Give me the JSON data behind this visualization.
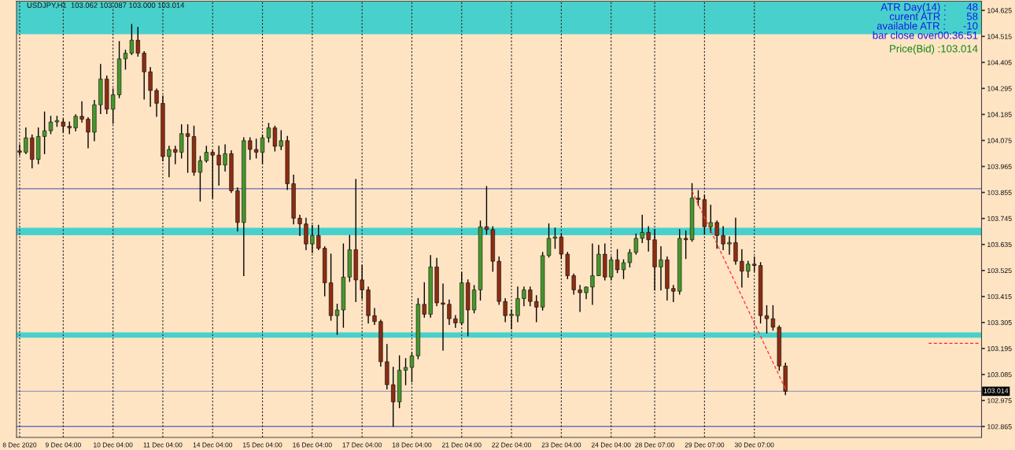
{
  "chart_data": {
    "type": "candlestick",
    "title": "USDJPY,H1  103.062 103.087 103.000 103.014",
    "annotations": [
      "ATR Day(14) :       48",
      "curent ATR :       58",
      "available ATR :      -10",
      "bar close over00:36:51",
      "Price(Bid) :103.014"
    ],
    "categories": [
      "8 Dec 2020",
      null,
      null,
      null,
      null,
      null,
      null,
      "9 Dec 04:00",
      null,
      null,
      null,
      null,
      null,
      null,
      null,
      "10 Dec 04:00",
      null,
      null,
      null,
      null,
      null,
      null,
      null,
      "11 Dec 04:00",
      null,
      null,
      null,
      null,
      null,
      null,
      null,
      "14 Dec 04:00",
      null,
      null,
      null,
      null,
      null,
      null,
      null,
      "15 Dec 04:00",
      null,
      null,
      null,
      null,
      null,
      null,
      null,
      "16 Dec 04:00",
      null,
      null,
      null,
      null,
      null,
      null,
      null,
      "17 Dec 04:00",
      null,
      null,
      null,
      null,
      null,
      null,
      null,
      "18 Dec 04:00",
      null,
      null,
      null,
      null,
      null,
      null,
      null,
      "21 Dec 04:00",
      null,
      null,
      null,
      null,
      null,
      null,
      null,
      "22 Dec 04:00",
      null,
      null,
      null,
      null,
      null,
      null,
      null,
      "23 Dec 04:00",
      null,
      null,
      null,
      null,
      null,
      null,
      null,
      "24 Dec 04:00",
      null,
      null,
      null,
      null,
      null,
      null,
      "28 Dec 07:00",
      null,
      null,
      null,
      null,
      null,
      null,
      null,
      "29 Dec 07:00",
      null,
      null,
      null,
      null,
      null,
      null,
      null,
      "30 Dec 07:00",
      null,
      null,
      null,
      null,
      null,
      null,
      null,
      null,
      null,
      null,
      null,
      null,
      null,
      null,
      null,
      null,
      null,
      null,
      null,
      null,
      null,
      null,
      null,
      null,
      null,
      null,
      null,
      null,
      null,
      null,
      null,
      null,
      null,
      null,
      null,
      null
    ],
    "ohlc": [
      [
        104.031,
        104.056,
        104.013,
        104.025
      ],
      [
        104.025,
        104.128,
        104.019,
        104.086
      ],
      [
        104.086,
        104.098,
        103.959,
        103.995
      ],
      [
        103.995,
        104.128,
        103.977,
        104.092
      ],
      [
        104.092,
        104.195,
        104.019,
        104.116
      ],
      [
        104.116,
        104.177,
        104.104,
        104.153
      ],
      [
        104.153,
        104.177,
        104.135,
        104.159
      ],
      [
        104.153,
        104.165,
        104.11,
        104.135
      ],
      [
        104.135,
        104.153,
        104.104,
        104.128
      ],
      [
        104.128,
        104.183,
        104.116,
        104.177
      ],
      [
        104.177,
        104.238,
        104.153,
        104.165
      ],
      [
        104.165,
        104.171,
        104.044,
        104.11
      ],
      [
        104.11,
        104.244,
        104.074,
        104.226
      ],
      [
        104.226,
        104.396,
        104.189,
        104.335
      ],
      [
        104.335,
        104.347,
        104.189,
        104.207
      ],
      [
        104.207,
        104.292,
        104.147,
        104.268
      ],
      [
        104.268,
        104.493,
        104.256,
        104.42
      ],
      [
        104.42,
        104.456,
        104.377,
        104.444
      ],
      [
        104.444,
        104.565,
        104.438,
        104.499
      ],
      [
        104.499,
        104.553,
        104.432,
        104.444
      ],
      [
        104.444,
        104.45,
        104.25,
        104.365
      ],
      [
        104.365,
        104.383,
        104.22,
        104.286
      ],
      [
        104.286,
        104.292,
        104.177,
        104.232
      ],
      [
        104.232,
        104.262,
        103.989,
        104.007
      ],
      [
        104.007,
        104.05,
        103.922,
        104.037
      ],
      [
        104.037,
        104.05,
        103.977,
        104.025
      ],
      [
        104.025,
        104.141,
        104.001,
        104.104
      ],
      [
        104.104,
        104.141,
        103.94,
        104.092
      ],
      [
        104.092,
        104.135,
        103.928,
        103.94
      ],
      [
        103.94,
        104.007,
        103.819,
        103.989
      ],
      [
        103.989,
        104.05,
        103.983,
        104.025
      ],
      [
        104.025,
        104.031,
        103.831,
        104.013
      ],
      [
        104.013,
        104.05,
        103.886,
        103.971
      ],
      [
        103.971,
        104.056,
        103.946,
        104.019
      ],
      [
        104.019,
        104.031,
        103.855,
        103.862
      ],
      [
        103.862,
        103.874,
        103.692,
        103.728
      ],
      [
        103.728,
        104.086,
        103.503,
        104.074
      ],
      [
        104.074,
        104.086,
        103.995,
        104.037
      ],
      [
        104.037,
        104.08,
        104.001,
        104.025
      ],
      [
        104.025,
        104.098,
        103.977,
        104.086
      ],
      [
        104.086,
        104.147,
        104.068,
        104.128
      ],
      [
        104.128,
        104.135,
        104.031,
        104.05
      ],
      [
        104.05,
        104.116,
        104.037,
        104.074
      ],
      [
        104.074,
        104.092,
        103.868,
        103.892
      ],
      [
        103.892,
        103.928,
        103.722,
        103.746
      ],
      [
        103.746,
        103.758,
        103.673,
        103.722
      ],
      [
        103.722,
        103.746,
        103.613,
        103.637
      ],
      [
        103.637,
        103.716,
        103.601,
        103.673
      ],
      [
        103.673,
        103.716,
        103.613,
        103.619
      ],
      [
        103.619,
        103.625,
        103.418,
        103.473
      ],
      [
        103.473,
        103.594,
        103.315,
        103.334
      ],
      [
        103.334,
        103.382,
        103.255,
        103.358
      ],
      [
        103.358,
        103.637,
        103.285,
        103.497
      ],
      [
        103.497,
        103.673,
        103.479,
        103.613
      ],
      [
        103.613,
        103.91,
        103.394,
        103.485
      ],
      [
        103.485,
        103.546,
        103.406,
        103.443
      ],
      [
        103.443,
        103.455,
        103.303,
        103.334
      ],
      [
        103.334,
        103.364,
        103.297,
        103.309
      ],
      [
        103.309,
        103.315,
        103.121,
        103.139
      ],
      [
        103.139,
        103.212,
        103.024,
        103.042
      ],
      [
        103.042,
        103.115,
        102.866,
        102.969
      ],
      [
        102.969,
        103.164,
        102.945,
        103.103
      ],
      [
        103.103,
        103.152,
        103.042,
        103.115
      ],
      [
        103.115,
        103.176,
        103.054,
        103.164
      ],
      [
        103.164,
        103.406,
        103.152,
        103.382
      ],
      [
        103.382,
        103.473,
        103.328,
        103.34
      ],
      [
        103.34,
        103.588,
        103.328,
        103.54
      ],
      [
        103.54,
        103.576,
        103.376,
        103.388
      ],
      [
        103.388,
        103.467,
        103.188,
        103.382
      ],
      [
        103.382,
        103.4,
        103.297,
        103.321
      ],
      [
        103.321,
        103.334,
        103.285,
        103.303
      ],
      [
        103.303,
        103.516,
        103.297,
        103.473
      ],
      [
        103.473,
        103.485,
        103.249,
        103.358
      ],
      [
        103.358,
        103.461,
        103.346,
        103.443
      ],
      [
        103.443,
        103.734,
        103.4,
        103.71
      ],
      [
        103.71,
        103.88,
        103.679,
        103.698
      ],
      [
        103.698,
        103.71,
        103.522,
        103.564
      ],
      [
        103.564,
        103.582,
        103.382,
        103.394
      ],
      [
        103.394,
        103.406,
        103.309,
        103.334
      ],
      [
        103.334,
        103.358,
        103.279,
        103.34
      ],
      [
        103.334,
        103.455,
        103.309,
        103.406
      ],
      [
        103.406,
        103.455,
        103.376,
        103.443
      ],
      [
        103.443,
        103.455,
        103.376,
        103.394
      ],
      [
        103.394,
        103.418,
        103.309,
        103.37
      ],
      [
        103.37,
        103.601,
        103.358,
        103.588
      ],
      [
        103.588,
        103.722,
        103.582,
        103.661
      ],
      [
        103.661,
        103.704,
        103.619,
        103.667
      ],
      [
        103.667,
        103.679,
        103.576,
        103.594
      ],
      [
        103.594,
        103.601,
        103.491,
        103.503
      ],
      [
        103.503,
        103.51,
        103.425,
        103.443
      ],
      [
        103.443,
        103.461,
        103.352,
        103.431
      ],
      [
        103.431,
        103.455,
        103.406,
        103.455
      ],
      [
        103.455,
        103.637,
        103.382,
        103.503
      ],
      [
        103.503,
        103.631,
        103.503,
        103.594
      ],
      [
        103.594,
        103.637,
        103.485,
        103.497
      ],
      [
        103.497,
        103.582,
        103.485,
        103.57
      ],
      [
        103.57,
        103.613,
        103.516,
        103.528
      ],
      [
        103.528,
        103.57,
        103.491,
        103.558
      ],
      [
        103.558,
        103.613,
        103.54,
        103.601
      ],
      [
        103.601,
        103.679,
        103.594,
        103.661
      ],
      [
        103.661,
        103.758,
        103.643,
        103.686
      ],
      [
        103.686,
        103.71,
        103.607,
        103.655
      ],
      [
        103.655,
        103.698,
        103.443,
        103.54
      ],
      [
        103.54,
        103.625,
        103.443,
        103.57
      ],
      [
        103.57,
        103.582,
        103.4,
        103.449
      ],
      [
        103.449,
        103.461,
        103.394,
        103.437
      ],
      [
        103.437,
        103.698,
        103.425,
        103.661
      ],
      [
        103.661,
        103.692,
        103.576,
        103.655
      ],
      [
        103.655,
        103.892,
        103.649,
        103.831
      ],
      [
        103.831,
        103.862,
        103.801,
        103.825
      ],
      [
        103.825,
        103.843,
        103.679,
        103.71
      ],
      [
        103.71,
        103.801,
        103.686,
        103.728
      ],
      [
        103.728,
        103.734,
        103.619,
        103.673
      ],
      [
        103.673,
        103.71,
        103.613,
        103.637
      ],
      [
        103.637,
        103.667,
        103.594,
        103.643
      ],
      [
        103.643,
        103.746,
        103.552,
        103.564
      ],
      [
        103.564,
        103.613,
        103.455,
        103.522
      ],
      [
        103.522,
        103.564,
        103.497,
        103.552
      ],
      [
        103.552,
        103.582,
        103.522,
        103.546
      ],
      [
        103.546,
        103.558,
        103.303,
        103.334
      ],
      [
        103.334,
        103.376,
        103.261,
        103.321
      ],
      [
        103.321,
        103.376,
        103.273,
        103.285
      ],
      [
        103.285,
        103.291,
        103.103,
        103.121
      ],
      [
        103.121,
        103.133,
        103.0,
        103.014
      ],
      null,
      null,
      null,
      null,
      null,
      null,
      null,
      null,
      null,
      null,
      null,
      null,
      null,
      null,
      null,
      null,
      null,
      null,
      null,
      null,
      null,
      null,
      null,
      null,
      null,
      null,
      null,
      null,
      null,
      null,
      null
    ],
    "colors": [
      "#8c2d12",
      "#46962d",
      "#8c2d12",
      "#46962d",
      "#46962d",
      "#46962d",
      "#46962d",
      "#8c2d12",
      "#8c2d12",
      "#46962d",
      "#8c2d12",
      "#8c2d12",
      "#46962d",
      "#46962d",
      "#8c2d12",
      "#46962d",
      "#46962d",
      "#46962d",
      "#46962d",
      "#8c2d12",
      "#8c2d12",
      "#8c2d12",
      "#8c2d12",
      "#8c2d12",
      "#46962d",
      "#8c2d12",
      "#46962d",
      "#8c2d12",
      "#8c2d12",
      "#46962d",
      "#46962d",
      "#8c2d12",
      "#8c2d12",
      "#46962d",
      "#8c2d12",
      "#8c2d12",
      "#46962d",
      "#8c2d12",
      "#8c2d12",
      "#46962d",
      "#46962d",
      "#8c2d12",
      "#46962d",
      "#8c2d12",
      "#8c2d12",
      "#8c2d12",
      "#8c2d12",
      "#46962d",
      "#8c2d12",
      "#8c2d12",
      "#8c2d12",
      "#46962d",
      "#46962d",
      "#46962d",
      "#8c2d12",
      "#8c2d12",
      "#8c2d12",
      "#8c2d12",
      "#8c2d12",
      "#8c2d12",
      "#8c2d12",
      "#46962d",
      "#46962d",
      "#46962d",
      "#46962d",
      "#8c2d12",
      "#46962d",
      "#8c2d12",
      "#8c2d12",
      "#8c2d12",
      "#8c2d12",
      "#46962d",
      "#8c2d12",
      "#46962d",
      "#46962d",
      "#8c2d12",
      "#8c2d12",
      "#8c2d12",
      "#8c2d12",
      "#46962d",
      "#46962d",
      "#46962d",
      "#8c2d12",
      "#8c2d12",
      "#46962d",
      "#46962d",
      "#46962d",
      "#8c2d12",
      "#8c2d12",
      "#8c2d12",
      "#8c2d12",
      "#46962d",
      "#46962d",
      "#46962d",
      "#8c2d12",
      "#46962d",
      "#8c2d12",
      "#46962d",
      "#46962d",
      "#46962d",
      "#46962d",
      "#8c2d12",
      "#8c2d12",
      "#46962d",
      "#8c2d12",
      "#8c2d12",
      "#46962d",
      "#8c2d12",
      "#46962d",
      "#8c2d12",
      "#8c2d12",
      "#46962d",
      "#8c2d12",
      "#8c2d12",
      "#46962d",
      "#8c2d12",
      "#8c2d12",
      "#46962d",
      "#8c2d12",
      "#8c2d12",
      "#8c2d12",
      "#8c2d12",
      "#8c2d12",
      "#8c2d12",
      null,
      null,
      null,
      null,
      null,
      null,
      null,
      null,
      null,
      null,
      null,
      null,
      null,
      null,
      null,
      null,
      null,
      null,
      null,
      null,
      null,
      null,
      null,
      null,
      null,
      null,
      null,
      null,
      null,
      null,
      null
    ],
    "series": [
      {
        "type": "line",
        "color": "#ff3b3b",
        "line_style": "dashed",
        "values": [
          null,
          null,
          null,
          null,
          null,
          null,
          null,
          null,
          null,
          null,
          null,
          null,
          null,
          null,
          null,
          null,
          null,
          null,
          null,
          null,
          null,
          null,
          null,
          null,
          null,
          null,
          null,
          null,
          null,
          null,
          null,
          null,
          null,
          null,
          null,
          null,
          null,
          null,
          null,
          null,
          null,
          null,
          null,
          null,
          null,
          null,
          null,
          null,
          null,
          null,
          null,
          null,
          null,
          null,
          null,
          null,
          null,
          null,
          null,
          null,
          null,
          null,
          null,
          null,
          null,
          null,
          null,
          null,
          null,
          null,
          null,
          null,
          null,
          null,
          null,
          null,
          null,
          null,
          null,
          null,
          null,
          null,
          null,
          null,
          null,
          null,
          null,
          null,
          null,
          null,
          null,
          null,
          null,
          null,
          null,
          null,
          null,
          null,
          null,
          null,
          null,
          null,
          null,
          null,
          null,
          null,
          null,
          null,
          103.861,
          103.805,
          103.749,
          103.694,
          103.638,
          103.582,
          103.526,
          103.47,
          103.415,
          103.359,
          103.303,
          103.247,
          103.191,
          103.136,
          103.08,
          103.024,
          null,
          null,
          null,
          null,
          null,
          null,
          null,
          null,
          null,
          null,
          null,
          null,
          null,
          null,
          null,
          null,
          null,
          null,
          null,
          null,
          null,
          null,
          null,
          null,
          null,
          null,
          null,
          null,
          null,
          null,
          null
        ]
      },
      {
        "type": "line",
        "color": "#ff2020",
        "line_style": "dashed",
        "values": [
          null,
          null,
          null,
          null,
          null,
          null,
          null,
          null,
          null,
          null,
          null,
          null,
          null,
          null,
          null,
          null,
          null,
          null,
          null,
          null,
          null,
          null,
          null,
          null,
          null,
          null,
          null,
          null,
          null,
          null,
          null,
          null,
          null,
          null,
          null,
          null,
          null,
          null,
          null,
          null,
          null,
          null,
          null,
          null,
          null,
          null,
          null,
          null,
          null,
          null,
          null,
          null,
          null,
          null,
          null,
          null,
          null,
          null,
          null,
          null,
          null,
          null,
          null,
          null,
          null,
          null,
          null,
          null,
          null,
          null,
          null,
          null,
          null,
          null,
          null,
          null,
          null,
          null,
          null,
          null,
          null,
          null,
          null,
          null,
          null,
          null,
          null,
          null,
          null,
          null,
          null,
          null,
          null,
          null,
          null,
          null,
          null,
          null,
          null,
          null,
          null,
          null,
          null,
          null,
          null,
          null,
          null,
          null,
          null,
          null,
          null,
          null,
          null,
          null,
          null,
          null,
          null,
          null,
          null,
          null,
          null,
          null,
          null,
          null,
          null,
          null,
          null,
          null,
          null,
          null,
          null,
          null,
          null,
          null,
          null,
          null,
          null,
          null,
          null,
          null,
          null,
          null,
          null,
          null,
          null,
          null,
          103.217,
          103.217,
          103.217,
          103.217,
          103.217,
          103.217,
          103.217,
          103.217,
          103.217
        ]
      }
    ],
    "bands": [
      {
        "axis": "y",
        "from": 104.524,
        "to": 104.664,
        "color": "#48d1cc"
      },
      {
        "axis": "y",
        "from": 103.674,
        "to": 103.706,
        "color": "#48d1cc"
      },
      {
        "axis": "y",
        "from": 103.241,
        "to": 103.263,
        "color": "#48d1cc"
      }
    ],
    "ref_lines": [
      {
        "axis": "y",
        "value": 103.871,
        "color": "#6b6bb3"
      },
      {
        "axis": "y",
        "value": 103.014,
        "label": "103.014",
        "color": "#9c9cb4"
      },
      {
        "axis": "y",
        "value": 102.865,
        "color": "#5252c0"
      }
    ],
    "ylim": [
      102.819,
      104.664
    ],
    "yticks": [
      102.865,
      102.975,
      103.085,
      103.195,
      103.305,
      103.415,
      103.525,
      103.635,
      103.745,
      103.855,
      103.965,
      104.075,
      104.185,
      104.295,
      104.405,
      104.515,
      104.625
    ],
    "grid": "x"
  }
}
